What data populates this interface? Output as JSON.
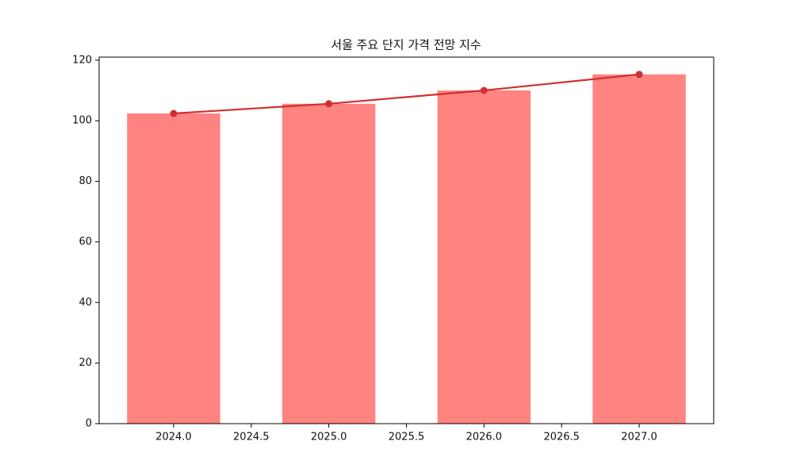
{
  "chart_data": {
    "type": "bar",
    "title": "서울 주요 단지 가격 전망 지수",
    "x": [
      2024,
      2025,
      2026,
      2027
    ],
    "series": [
      {
        "type": "bar",
        "color": "#ff8380",
        "values": [
          102.4,
          105.6,
          110.0,
          115.3
        ]
      },
      {
        "type": "line",
        "color": "#d03030",
        "values": [
          102.4,
          105.6,
          110.0,
          115.3
        ]
      }
    ],
    "bar_width": 0.6,
    "xlim": [
      2023.52,
      2027.48
    ],
    "xticks": [
      {
        "value": 2024,
        "label": "2024.0"
      },
      {
        "value": 2024.5,
        "label": "2024.5"
      },
      {
        "value": 2025,
        "label": "2025.0"
      },
      {
        "value": 2025.5,
        "label": "2025.5"
      },
      {
        "value": 2026,
        "label": "2026.0"
      },
      {
        "value": 2026.5,
        "label": "2026.5"
      },
      {
        "value": 2027,
        "label": "2027.0"
      }
    ],
    "ylim": [
      0,
      121
    ],
    "yticks": [
      0,
      20,
      40,
      60,
      80,
      100,
      120
    ]
  }
}
